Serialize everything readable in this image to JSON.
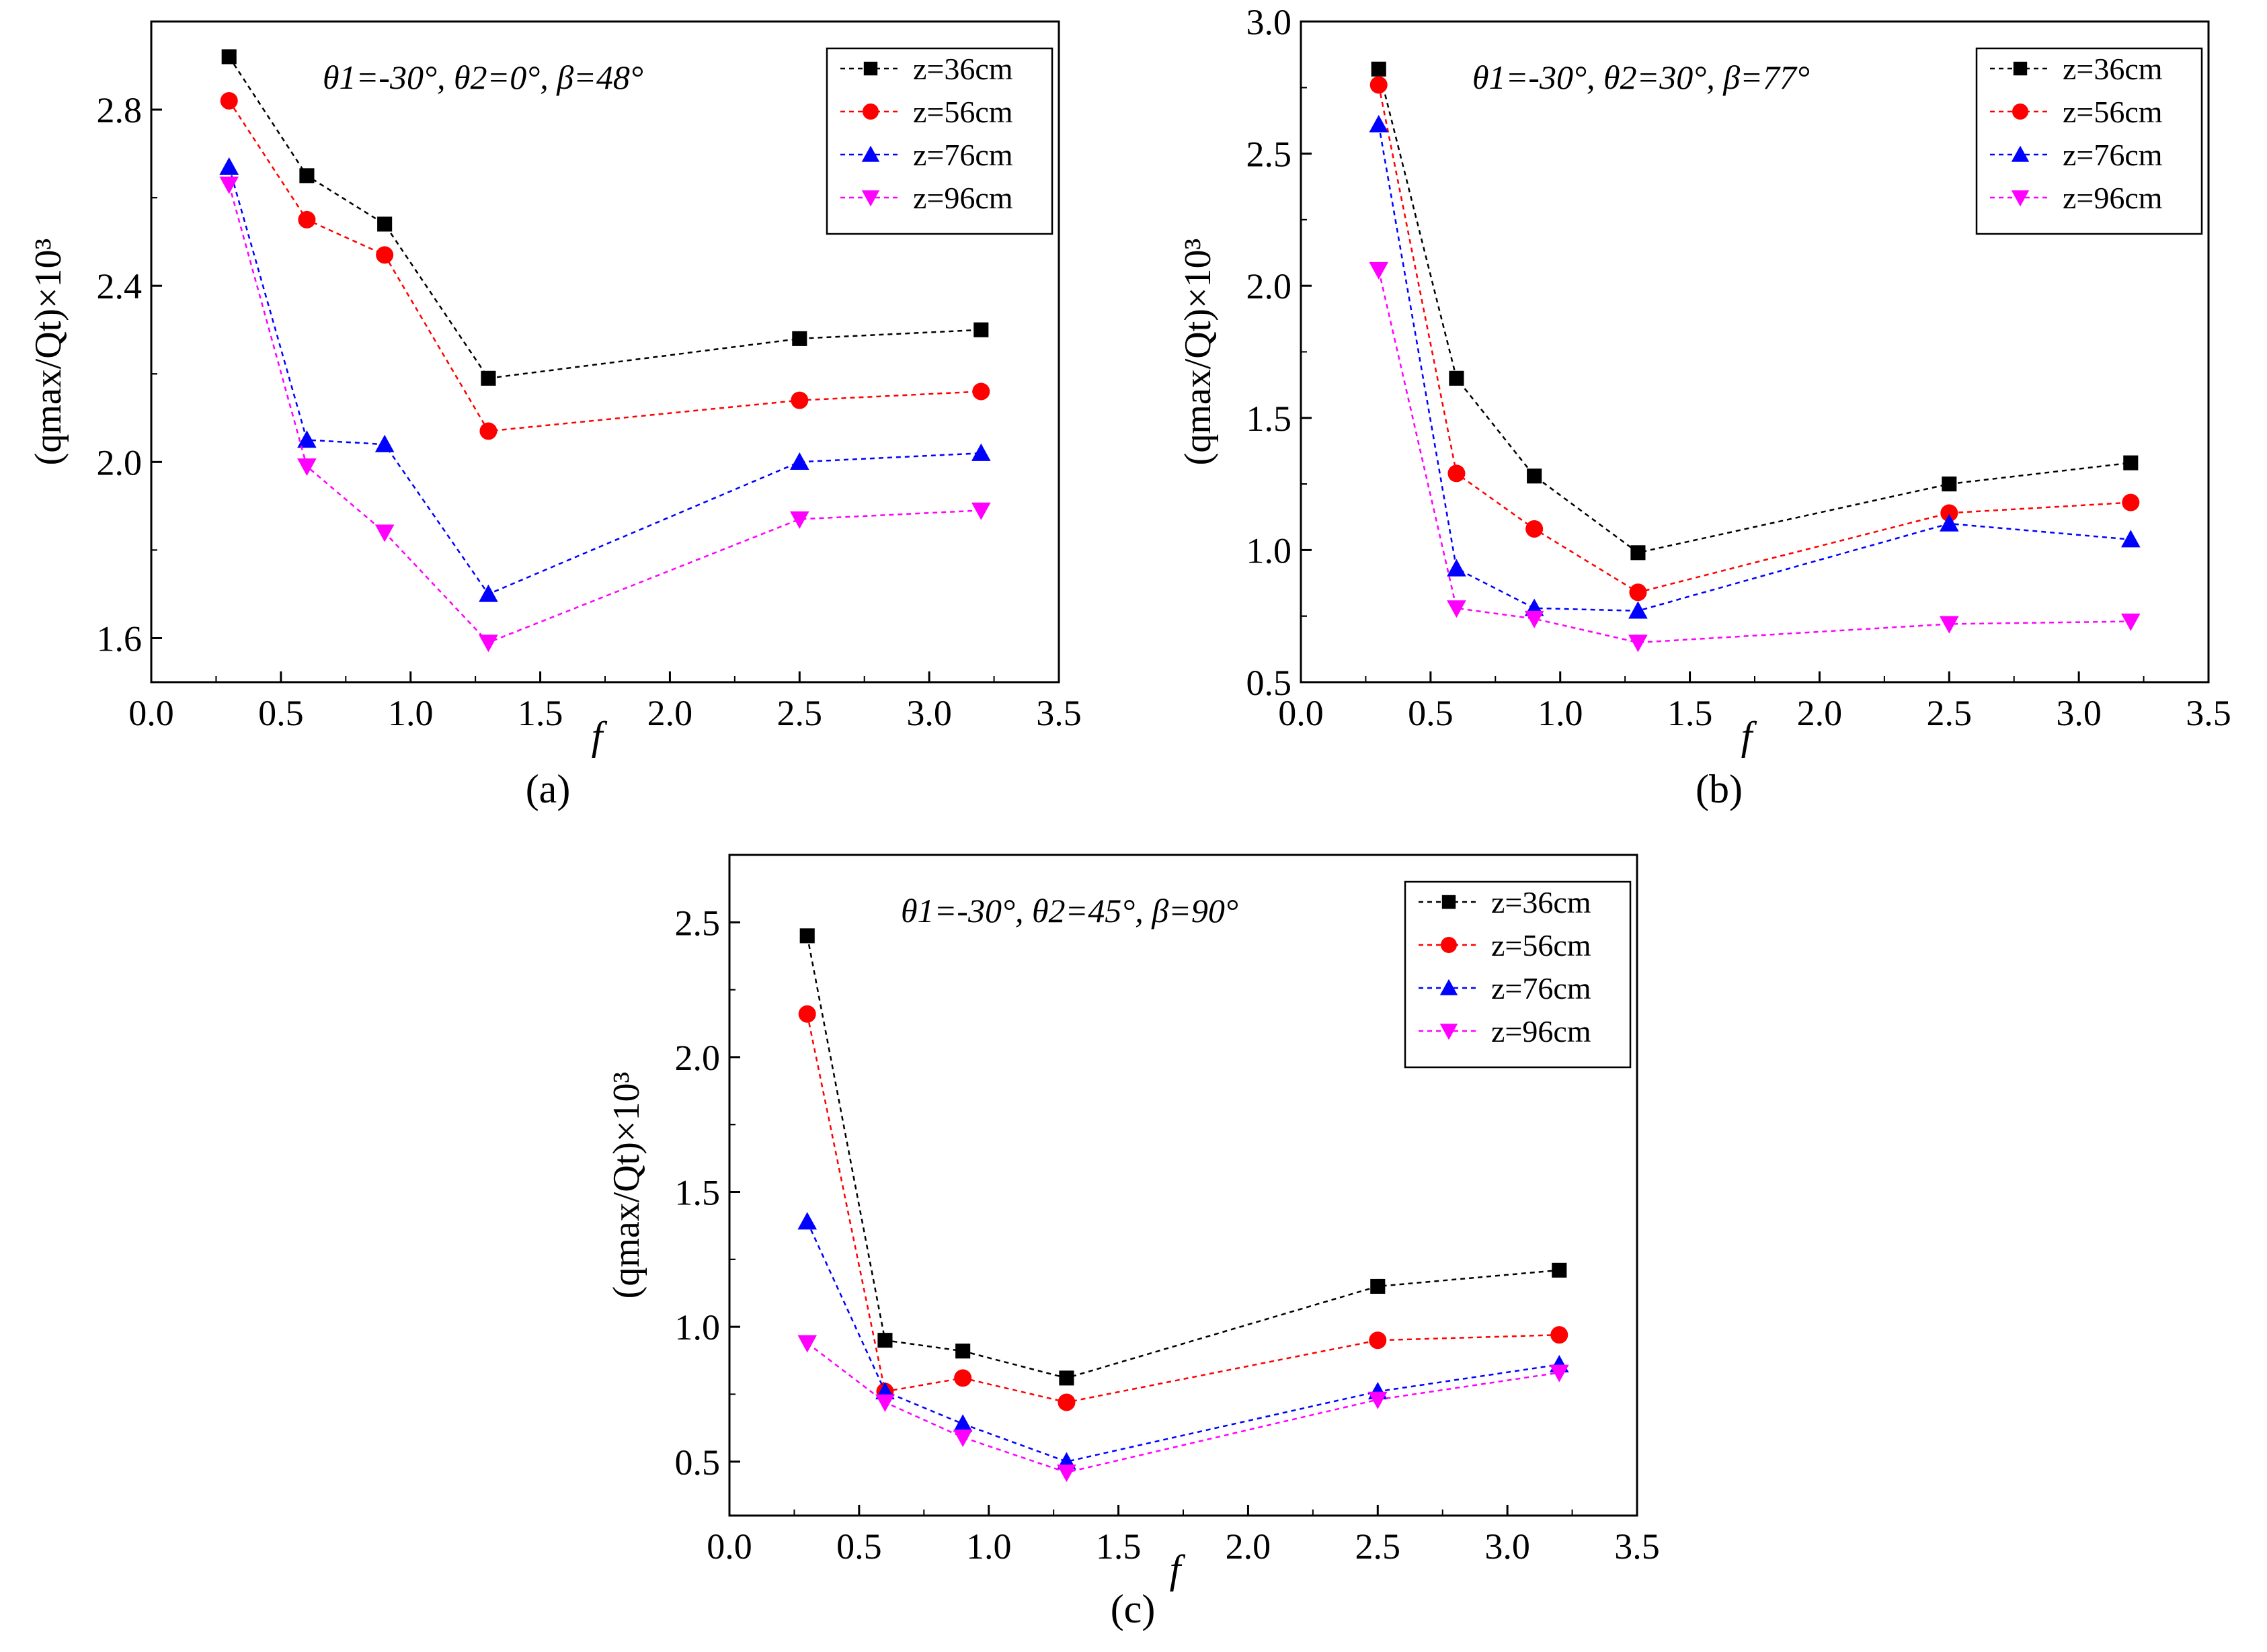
{
  "figure": {
    "panel_labels": [
      "(a)",
      "(b)",
      "(c)"
    ]
  },
  "chart_data": [
    {
      "type": "line",
      "panel": "a",
      "annotation": "θ1=-30°, θ2=0°, β=48°",
      "xlabel": "f",
      "ylabel": "(qmax/Qt)×10³",
      "xlim": [
        0.0,
        3.5
      ],
      "ylim": [
        1.5,
        3.0
      ],
      "xticks": [
        "0.0",
        "0.5",
        "1.0",
        "1.5",
        "2.0",
        "2.5",
        "3.0",
        "3.5"
      ],
      "xtick_values": [
        0.0,
        0.5,
        1.0,
        1.5,
        2.0,
        2.5,
        3.0,
        3.5
      ],
      "yticks": [
        "1.6",
        "2.0",
        "2.4",
        "2.8"
      ],
      "ytick_values": [
        1.6,
        2.0,
        2.4,
        2.8
      ],
      "legend_position": "top-right",
      "x": [
        0.3,
        0.6,
        0.9,
        1.3,
        2.5,
        3.2
      ],
      "series": [
        {
          "name": "z=36cm",
          "marker": "square",
          "color": "#000000",
          "values": [
            2.92,
            2.65,
            2.54,
            2.19,
            2.28,
            2.3
          ]
        },
        {
          "name": "z=56cm",
          "marker": "circle",
          "color": "#ff0000",
          "values": [
            2.82,
            2.55,
            2.47,
            2.07,
            2.14,
            2.16
          ]
        },
        {
          "name": "z=76cm",
          "marker": "triangle-up",
          "color": "#0000ff",
          "values": [
            2.67,
            2.05,
            2.04,
            1.7,
            2.0,
            2.02
          ]
        },
        {
          "name": "z=96cm",
          "marker": "triangle-down",
          "color": "#ff00ff",
          "values": [
            2.63,
            1.99,
            1.84,
            1.59,
            1.87,
            1.89
          ]
        }
      ]
    },
    {
      "type": "line",
      "panel": "b",
      "annotation": "θ1=-30°, θ2=30°, β=77°",
      "xlabel": "f",
      "ylabel": "(qmax/Qt)×10³",
      "xlim": [
        0.0,
        3.5
      ],
      "ylim": [
        0.5,
        3.0
      ],
      "xticks": [
        "0.0",
        "0.5",
        "1.0",
        "1.5",
        "2.0",
        "2.5",
        "3.0",
        "3.5"
      ],
      "xtick_values": [
        0.0,
        0.5,
        1.0,
        1.5,
        2.0,
        2.5,
        3.0,
        3.5
      ],
      "yticks": [
        "0.5",
        "1.0",
        "1.5",
        "2.0",
        "2.5",
        "3.0"
      ],
      "ytick_values": [
        0.5,
        1.0,
        1.5,
        2.0,
        2.5,
        3.0
      ],
      "legend_position": "top-right",
      "x": [
        0.3,
        0.6,
        0.9,
        1.3,
        2.5,
        3.2
      ],
      "series": [
        {
          "name": "z=36cm",
          "marker": "square",
          "color": "#000000",
          "values": [
            2.82,
            1.65,
            1.28,
            0.99,
            1.25,
            1.33
          ]
        },
        {
          "name": "z=56cm",
          "marker": "circle",
          "color": "#ff0000",
          "values": [
            2.76,
            1.29,
            1.08,
            0.84,
            1.14,
            1.18
          ]
        },
        {
          "name": "z=76cm",
          "marker": "triangle-up",
          "color": "#0000ff",
          "values": [
            2.61,
            0.93,
            0.78,
            0.77,
            1.1,
            1.04
          ]
        },
        {
          "name": "z=96cm",
          "marker": "triangle-down",
          "color": "#ff00ff",
          "values": [
            2.06,
            0.78,
            0.74,
            0.65,
            0.72,
            0.73
          ]
        }
      ]
    },
    {
      "type": "line",
      "panel": "c",
      "annotation": "θ1=-30°, θ2=45°, β=90°",
      "xlabel": "f",
      "ylabel": "(qmax/Qt)×10³",
      "xlim": [
        0.0,
        3.5
      ],
      "ylim": [
        0.3,
        2.75
      ],
      "xticks": [
        "0.0",
        "0.5",
        "1.0",
        "1.5",
        "2.0",
        "2.5",
        "3.0",
        "3.5"
      ],
      "xtick_values": [
        0.0,
        0.5,
        1.0,
        1.5,
        2.0,
        2.5,
        3.0,
        3.5
      ],
      "yticks": [
        "0.5",
        "1.0",
        "1.5",
        "2.0",
        "2.5"
      ],
      "ytick_values": [
        0.5,
        1.0,
        1.5,
        2.0,
        2.5
      ],
      "legend_position": "top-right",
      "x": [
        0.3,
        0.6,
        0.9,
        1.3,
        2.5,
        3.2
      ],
      "series": [
        {
          "name": "z=36cm",
          "marker": "square",
          "color": "#000000",
          "values": [
            2.45,
            0.95,
            0.91,
            0.81,
            1.15,
            1.21
          ]
        },
        {
          "name": "z=56cm",
          "marker": "circle",
          "color": "#ff0000",
          "values": [
            2.16,
            0.76,
            0.81,
            0.72,
            0.95,
            0.97
          ]
        },
        {
          "name": "z=76cm",
          "marker": "triangle-up",
          "color": "#0000ff",
          "values": [
            1.39,
            0.76,
            0.64,
            0.5,
            0.76,
            0.86
          ]
        },
        {
          "name": "z=96cm",
          "marker": "triangle-down",
          "color": "#ff00ff",
          "values": [
            0.94,
            0.72,
            0.59,
            0.46,
            0.73,
            0.83
          ]
        }
      ]
    }
  ]
}
